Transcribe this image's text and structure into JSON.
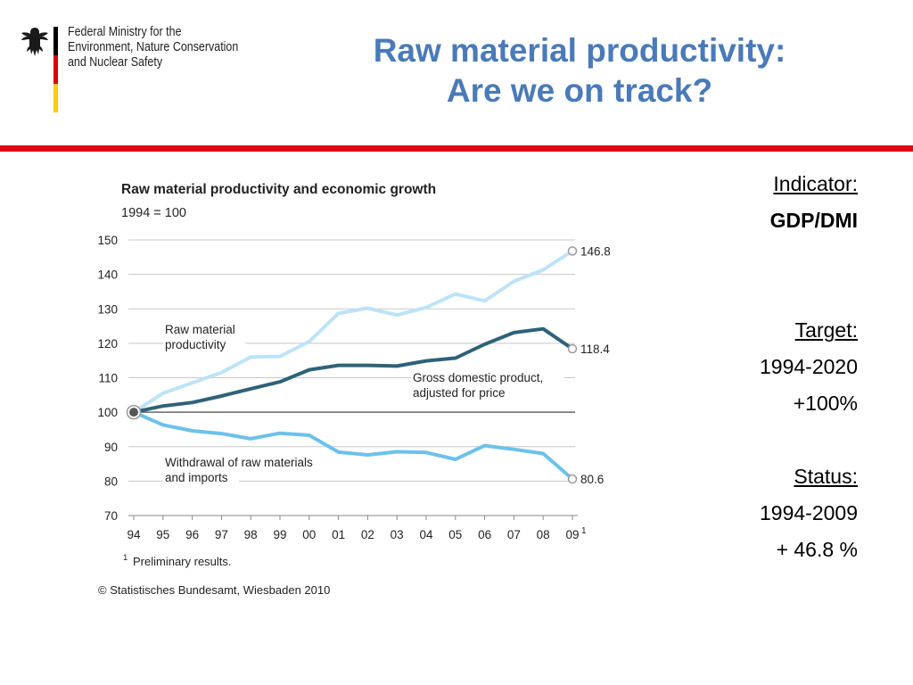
{
  "header": {
    "ministry_lines": [
      "Federal Ministry for the",
      "Environment, Nature Conservation",
      "and Nuclear Safety"
    ],
    "title_line1": "Raw material productivity:",
    "title_line2": "Are we on track?",
    "title_color": "#4a7ab8",
    "rule_color": "#e30613",
    "flag_colors": [
      "#000000",
      "#dd0000",
      "#ffcc00"
    ]
  },
  "side_panel": {
    "indicator_label": "Indicator:",
    "indicator_value": "GDP/DMI",
    "target_label": "Target:",
    "target_period": "1994-2020",
    "target_value": "+100%",
    "status_label": "Status:",
    "status_period": "1994-2009",
    "status_value": "+ 46.8 %"
  },
  "chart_data": {
    "type": "line",
    "title": "Raw material productivity and economic growth",
    "subtitle": "1994 = 100",
    "categories": [
      "94",
      "95",
      "96",
      "97",
      "98",
      "99",
      "00",
      "01",
      "02",
      "03",
      "04",
      "05",
      "06",
      "07",
      "08",
      "09"
    ],
    "last_category_footnote": "1",
    "yticks": [
      70,
      80,
      90,
      100,
      110,
      120,
      130,
      140,
      150
    ],
    "ylim": [
      70,
      150
    ],
    "grid": true,
    "series": [
      {
        "name": "Raw material productivity",
        "label_lines": [
          "Raw material",
          "productivity"
        ],
        "color": "#bde3f7",
        "values": [
          100,
          105.5,
          108.5,
          111.5,
          116,
          116.2,
          120.5,
          128.7,
          130.2,
          128.2,
          130.4,
          134.3,
          132.3,
          138,
          141.3,
          146.8
        ],
        "end_label": "146.8"
      },
      {
        "name": "Gross domestic product, adjusted for price",
        "label_lines": [
          "Gross domestic product,",
          "adjusted for price"
        ],
        "color": "#2e6278",
        "values": [
          100,
          101.8,
          102.8,
          104.7,
          106.8,
          108.8,
          112.3,
          113.6,
          113.6,
          113.4,
          114.9,
          115.7,
          119.7,
          123.1,
          124.2,
          118.4
        ],
        "end_label": "118.4"
      },
      {
        "name": "Withdrawal of raw materials and imports",
        "label_lines": [
          "Withdrawal of raw materials",
          "and imports"
        ],
        "color": "#6cc1ea",
        "values": [
          100,
          96.3,
          94.6,
          93.8,
          92.3,
          93.9,
          93.3,
          88.4,
          87.6,
          88.5,
          88.3,
          86.3,
          90.3,
          89.2,
          88,
          80.6
        ],
        "end_label": "80.6"
      }
    ],
    "baseline_value": 100,
    "footnote": "Preliminary results.",
    "footnote_marker": "1",
    "source": "© Statistisches Bundesamt, Wiesbaden 2010"
  }
}
